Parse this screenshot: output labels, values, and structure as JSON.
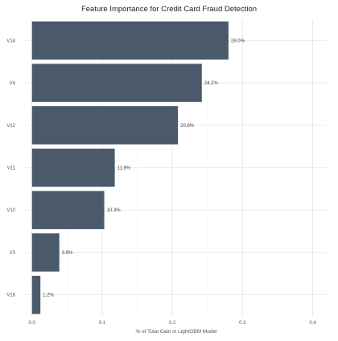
{
  "chart_data": {
    "type": "bar",
    "orientation": "horizontal",
    "title": "Feature Importance for Credit Card Fraud Detection",
    "xlabel": "% of Total Gain in LightGBM Model",
    "ylabel": "",
    "xlim": [
      -0.01,
      0.42
    ],
    "x_ticks": [
      0.0,
      0.1,
      0.2,
      0.3,
      0.4
    ],
    "x_tick_labels": [
      "0.0",
      "0.1",
      "0.2",
      "0.3",
      "0.4"
    ],
    "grid": true,
    "legend": "none",
    "categories": [
      "V14",
      "V4",
      "V12",
      "V11",
      "V10",
      "V3",
      "V16"
    ],
    "values": [
      0.28,
      0.242,
      0.208,
      0.118,
      0.103,
      0.039,
      0.012
    ],
    "data_labels": [
      "28.0%",
      "24.2%",
      "20.8%",
      "11.8%",
      "10.3%",
      "3.9%",
      "1.2%"
    ],
    "bar_color": "#4a5a6b"
  }
}
